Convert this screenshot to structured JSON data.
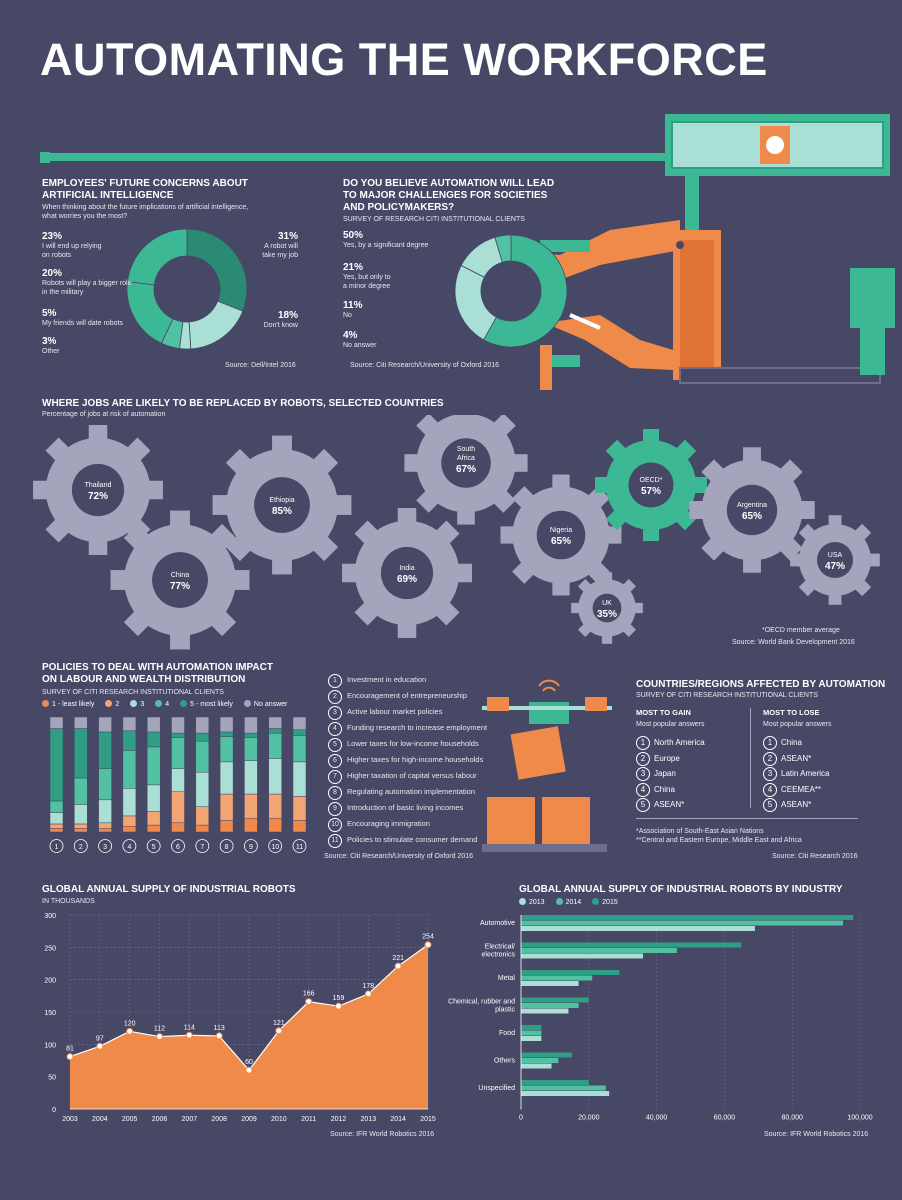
{
  "title": "AUTOMATING THE WORKFORCE",
  "colors": {
    "bg": "#474766",
    "teal": "#2f9e84",
    "teal_mid": "#3cb895",
    "teal_light": "#a9dfd4",
    "orange": "#f08a4b",
    "grey": "#a5a4bd",
    "dark_teal": "#2b8a73"
  },
  "concerns": {
    "title_l1": "EMPLOYEES' FUTURE CONCERNS ABOUT",
    "title_l2": "ARTIFICIAL INTELLIGENCE",
    "sub_l1": "When thinking about the future implications of artificial intelligence,",
    "sub_l2": "what worries you the most?",
    "items": [
      {
        "pct": "23%",
        "l1": "I will end up relying",
        "l2": "on robots",
        "value": 23
      },
      {
        "pct": "20%",
        "l1": "Robots will play a bigger role",
        "l2": "in the military",
        "value": 20
      },
      {
        "pct": "5%",
        "l1": "My friends will date robots",
        "l2": "",
        "value": 5
      },
      {
        "pct": "3%",
        "l1": "Other",
        "l2": "",
        "value": 3
      },
      {
        "pct": "31%",
        "l1": "A robot will",
        "l2": "take my job",
        "value": 31
      },
      {
        "pct": "18%",
        "l1": "Don't know",
        "l2": "",
        "value": 18
      }
    ],
    "source": "Source: Dell/Intel 2016"
  },
  "challenges": {
    "title_l1": "DO YOU BELIEVE AUTOMATION WILL LEAD",
    "title_l2": "TO MAJOR CHALLENGES FOR SOCIETIES",
    "title_l3": "AND POLICYMAKERS?",
    "sub": "SURVEY OF RESEARCH CITI INSTITUTIONAL CLIENTS",
    "items": [
      {
        "pct": "50%",
        "l1": "Yes, by a significant degree",
        "l2": "",
        "value": 50
      },
      {
        "pct": "21%",
        "l1": "Yes, but only to",
        "l2": "a minor degree",
        "value": 21
      },
      {
        "pct": "11%",
        "l1": "No",
        "l2": "",
        "value": 11
      },
      {
        "pct": "4%",
        "l1": "No answer",
        "l2": "",
        "value": 4
      }
    ],
    "source": "Source: Citi Research/University of Oxford 2016"
  },
  "jobs": {
    "title": "WHERE JOBS ARE LIKELY TO BE REPLACED BY ROBOTS, SELECTED COUNTRIES",
    "sub": "Percentage of jobs at risk of automation",
    "gears": [
      {
        "name": "Thailand",
        "pct": "72%"
      },
      {
        "name": "Ethiopia",
        "pct": "85%"
      },
      {
        "name": "China",
        "pct": "77%"
      },
      {
        "name": "India",
        "pct": "69%"
      },
      {
        "name": "South Africa",
        "pct": "67%"
      },
      {
        "name": "Nigeria",
        "pct": "65%"
      },
      {
        "name": "OECD*",
        "pct": "57%"
      },
      {
        "name": "Argentina",
        "pct": "65%"
      },
      {
        "name": "USA",
        "pct": "47%"
      },
      {
        "name": "UK",
        "pct": "35%"
      }
    ],
    "note": "*OECD member average",
    "source": "Source: World Bank Development 2016"
  },
  "policies": {
    "title_l1": "POLICIES TO DEAL WITH AUTOMATION IMPACT",
    "title_l2": "ON LABOUR AND WEALTH DISTRIBUTION",
    "sub": "SURVEY OF CITI RESEARCH INSTITUTIONAL CLIENTS",
    "legend": [
      "1 - least likely",
      "2",
      "3",
      "4",
      "5 - most likely",
      "No answer"
    ],
    "legend_colors": [
      "#f08a4b",
      "#f3a574",
      "#a9dfd4",
      "#52c0a2",
      "#2f9e84",
      "#a5a4bd"
    ],
    "list": [
      "Investment in education",
      "Encouragement of entrepreneurship",
      "Active labour market policies",
      "Funding research to increase employment",
      "Lower taxes for low-income households",
      "Higher taxes for high-income households",
      "Higher taxation of capital versus labour",
      "Regulating automation implementation",
      "Introduction of basic living incomes",
      "Encouraging immigration",
      "Policies to stimulate consumer demand"
    ],
    "source": "Source: Citi Research/University of Oxford 2016"
  },
  "regions": {
    "title": "COUNTRIES/REGIONS AFFECTED BY AUTOMATION",
    "sub": "SURVEY OF CITI RESEARCH INSTITUTIONAL CLIENTS",
    "gain_title": "MOST TO GAIN",
    "lose_title": "MOST TO LOSE",
    "answers_label": "Most popular answers",
    "gain": [
      "North America",
      "Europe",
      "Japan",
      "China",
      "ASEAN*"
    ],
    "lose": [
      "China",
      "ASEAN*",
      "Latin America",
      "CEEMEA**",
      "ASEAN*"
    ],
    "note1": "*Association of South-East Asian Nations",
    "note2": "**Central and Eastern Europe, Middle East and Africa",
    "source": "Source: Citi Research 2016"
  },
  "supply": {
    "title": "GLOBAL ANNUAL SUPPLY OF INDUSTRIAL ROBOTS",
    "sub": "IN THOUSANDS",
    "source": "Source: IFR World Robotics 2016"
  },
  "industry": {
    "title": "GLOBAL ANNUAL SUPPLY OF INDUSTRIAL ROBOTS BY INDUSTRY",
    "source": "Source: IFR World Robotics 2016"
  },
  "chart_data": [
    {
      "type": "bar",
      "stacked": true,
      "categories": [
        "1",
        "2",
        "3",
        "4",
        "5",
        "6",
        "7",
        "8",
        "9",
        "10",
        "11"
      ],
      "ylim": [
        0,
        100
      ],
      "series": [
        {
          "name": "1 - least likely",
          "values": [
            3,
            3,
            3,
            5,
            6,
            8,
            6,
            10,
            12,
            12,
            10
          ]
        },
        {
          "name": "2",
          "values": [
            4,
            4,
            5,
            9,
            12,
            27,
            16,
            23,
            21,
            21,
            21
          ]
        },
        {
          "name": "3",
          "values": [
            10,
            17,
            20,
            24,
            23,
            20,
            30,
            28,
            29,
            31,
            30
          ]
        },
        {
          "name": "4",
          "values": [
            10,
            23,
            27,
            33,
            33,
            27,
            27,
            22,
            20,
            22,
            23
          ]
        },
        {
          "name": "5 - most likely",
          "values": [
            63,
            43,
            32,
            17,
            13,
            4,
            7,
            4,
            4,
            4,
            5
          ]
        },
        {
          "name": "No answer",
          "values": [
            10,
            10,
            13,
            12,
            13,
            14,
            14,
            13,
            14,
            10,
            11
          ]
        }
      ]
    },
    {
      "type": "area",
      "title": "GLOBAL ANNUAL SUPPLY OF INDUSTRIAL ROBOTS",
      "ylabel": "IN THOUSANDS",
      "x": [
        "2003",
        "2004",
        "2005",
        "2006",
        "2007",
        "2008",
        "2009",
        "2010",
        "2011",
        "2012",
        "2013",
        "2014",
        "2015"
      ],
      "values": [
        81,
        97,
        120,
        112,
        114,
        113,
        60,
        121,
        166,
        159,
        178,
        221,
        254
      ],
      "ylim": [
        0,
        300
      ],
      "yticks": [
        0,
        50,
        100,
        150,
        200,
        250,
        300
      ]
    },
    {
      "type": "bar",
      "orientation": "horizontal",
      "title": "GLOBAL ANNUAL SUPPLY OF INDUSTRIAL ROBOTS BY INDUSTRY",
      "categories": [
        "Automotive",
        "Electrical/ electronics",
        "Metal",
        "Chemical, rubber and plastic",
        "Food",
        "Others",
        "Unspecified"
      ],
      "series": [
        {
          "name": "2013",
          "values": [
            69000,
            36000,
            17000,
            14000,
            6000,
            9000,
            26000
          ]
        },
        {
          "name": "2014",
          "values": [
            95000,
            46000,
            21000,
            17000,
            6000,
            11000,
            25000
          ]
        },
        {
          "name": "2015",
          "values": [
            98000,
            65000,
            29000,
            20000,
            6000,
            15000,
            20000
          ]
        }
      ],
      "xlim": [
        0,
        100000
      ],
      "xticks": [
        "0",
        "20,000",
        "40,000",
        "60,000",
        "80,000",
        "100,000"
      ]
    }
  ]
}
